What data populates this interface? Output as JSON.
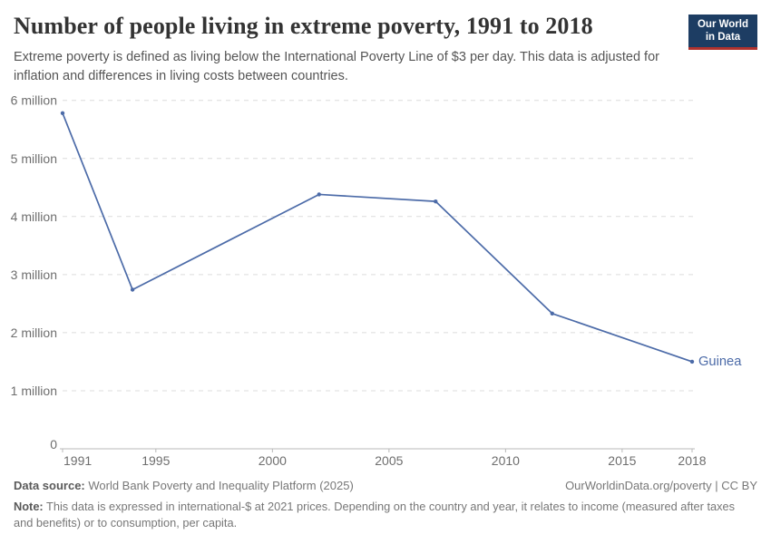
{
  "header": {
    "title": "Number of people living in extreme poverty, 1991 to 2018",
    "subtitle": "Extreme poverty is defined as living below the International Poverty Line of $3 per day. This data is adjusted for inflation and differences in living costs between countries.",
    "logo": {
      "line1": "Our World",
      "line2": "in Data",
      "bg_color": "#1d3d63",
      "bar_color": "#b0322e"
    }
  },
  "chart_data": {
    "type": "line",
    "title": "Number of people living in extreme poverty, 1991 to 2018",
    "xlabel": "",
    "ylabel": "",
    "unit": "people (values in millions)",
    "xlim": [
      1991,
      2018
    ],
    "ylim_millions": [
      0,
      6
    ],
    "grid": "horizontal-dashed",
    "legend_position": "end-of-line-label",
    "x_ticks": [
      1991,
      1995,
      2000,
      2005,
      2010,
      2015,
      2018
    ],
    "y_ticks": [
      {
        "value": 0,
        "label": "0"
      },
      {
        "value": 1,
        "label": "1 million"
      },
      {
        "value": 2,
        "label": "2 million"
      },
      {
        "value": 3,
        "label": "3 million"
      },
      {
        "value": 4,
        "label": "4 million"
      },
      {
        "value": 5,
        "label": "5 million"
      },
      {
        "value": 6,
        "label": "6 million"
      }
    ],
    "series": [
      {
        "name": "Guinea",
        "end_label": "Guinea",
        "color": "#4c6ba8",
        "points": [
          {
            "year": 1991,
            "value_millions": 5.78
          },
          {
            "year": 1994,
            "value_millions": 2.74
          },
          {
            "year": 2002,
            "value_millions": 4.38
          },
          {
            "year": 2007,
            "value_millions": 4.26
          },
          {
            "year": 2012,
            "value_millions": 2.33
          },
          {
            "year": 2018,
            "value_millions": 1.5
          }
        ]
      }
    ],
    "colors": {
      "gridline": "#dcdcdc",
      "axis": "#b8b8b8",
      "tick_text": "#6e6e6e"
    }
  },
  "footer": {
    "source_label": "Data source:",
    "source_text": " World Bank Poverty and Inequality Platform (2025)",
    "link_text": "OurWorldinData.org/poverty | CC BY",
    "note_label": "Note:",
    "note_text": " This data is expressed in international-$ at 2021 prices. Depending on the country and year, it relates to income (measured after taxes and benefits) or to consumption, per capita."
  }
}
